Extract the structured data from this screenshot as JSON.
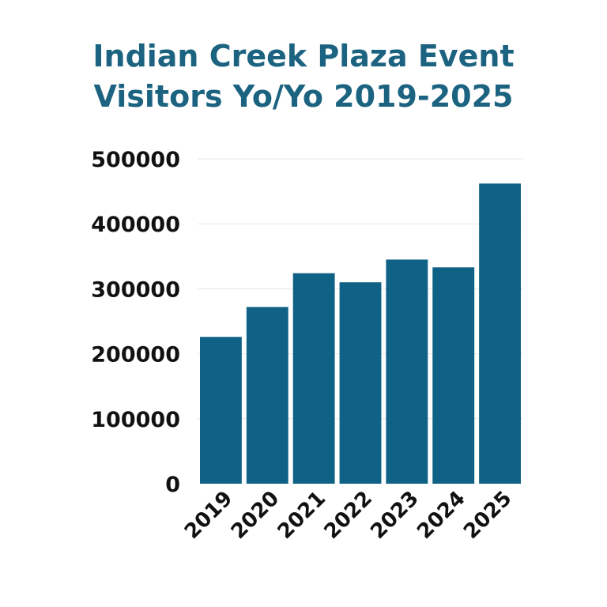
{
  "title_lines": [
    "Indian Creek Plaza Event",
    "Visitors Yo/Yo 2019-2025"
  ],
  "colors": {
    "title": "#1b6380",
    "bar": "#0f6185",
    "grid": "#e6e6e6",
    "text": "#111111"
  },
  "chart_data": {
    "type": "bar",
    "title": "Indian Creek Plaza Event Visitors Yo/Yo 2019-2025",
    "xlabel": "",
    "ylabel": "",
    "categories": [
      "2019",
      "2020",
      "2021",
      "2022",
      "2023",
      "2024",
      "2025"
    ],
    "values": [
      226000,
      272000,
      324000,
      310000,
      345000,
      333000,
      462000
    ],
    "ylim": [
      0,
      500000
    ],
    "yticks": [
      "0",
      "100000",
      "200000",
      "300000",
      "400000",
      "500000"
    ],
    "grid": true,
    "legend": "none"
  }
}
